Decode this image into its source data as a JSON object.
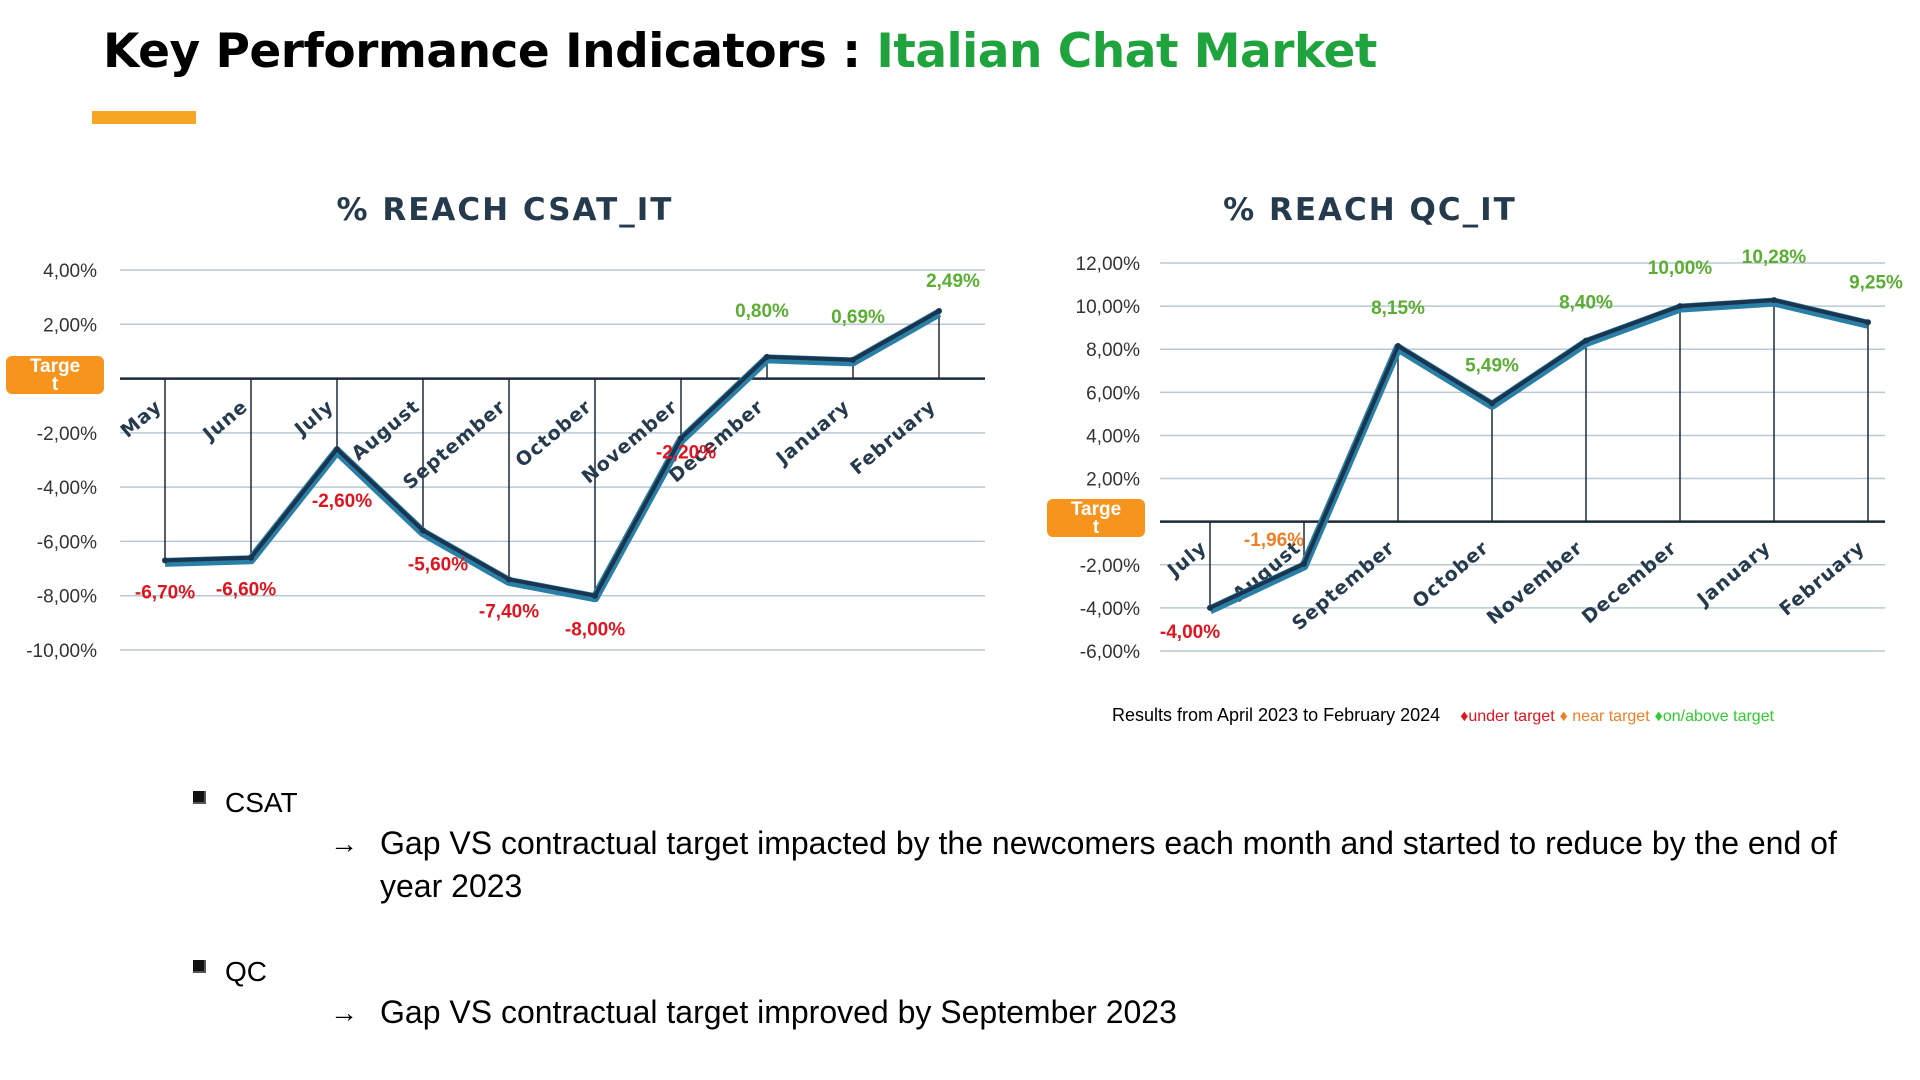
{
  "title": {
    "main": "Key Performance Indicators : ",
    "accent": "Italian Chat Market"
  },
  "colors": {
    "accent_green": "#1fa33c",
    "underline_orange": "#f5a623",
    "line_dark": "#1a3550",
    "line_light": "#2a7fa6",
    "under_target": "#e0141e",
    "near_target": "#ef7f22",
    "above_target": "#5aae32",
    "target_badge": "#f7941d"
  },
  "chart_data": [
    {
      "type": "line",
      "title": "% REACH CSAT_IT",
      "categories": [
        "May",
        "June",
        "July",
        "August",
        "September",
        "October",
        "November",
        "December",
        "January",
        "February"
      ],
      "series": [
        {
          "values": [
            -6.7,
            -6.6,
            -2.6,
            -5.6,
            -7.4,
            -8.0,
            -2.2,
            0.8,
            0.69,
            2.49
          ]
        }
      ],
      "data_labels": [
        "-6,70%",
        "-6,60%",
        "-2,60%",
        "-5,60%",
        "-7,40%",
        "-8,00%",
        "-2,20%",
        "0,80%",
        "0,69%",
        "2,49%"
      ],
      "yticks": [
        "4,00%",
        "2,00%",
        "",
        "-2,00%",
        "-4,00%",
        "-6,00%",
        "-8,00%",
        "-10,00%"
      ],
      "ylim": [
        -10,
        4
      ],
      "target_label": "Targe\nt",
      "grid": true
    },
    {
      "type": "line",
      "title": "% REACH QC_IT",
      "categories": [
        "July",
        "August",
        "September",
        "October",
        "November",
        "December",
        "January",
        "February"
      ],
      "series": [
        {
          "values": [
            -4.0,
            -1.96,
            8.15,
            5.49,
            8.4,
            10.0,
            10.28,
            9.25
          ]
        }
      ],
      "data_labels": [
        "-4,00%",
        "-1,96%",
        "8,15%",
        "5,49%",
        "8,40%",
        "10,00%",
        "10,28%",
        "9,25%"
      ],
      "yticks": [
        "12,00%",
        "10,00%",
        "8,00%",
        "6,00%",
        "4,00%",
        "2,00%",
        "",
        "-2,00%",
        "-4,00%",
        "-6,00%"
      ],
      "ylim": [
        -6,
        12
      ],
      "target_label": "Targe\nt",
      "grid": true
    }
  ],
  "footnote": {
    "text": "Results from April 2023 to February 2024",
    "under": "♦under target",
    "near": "♦ near target",
    "above": "♦on/above target"
  },
  "bullets": [
    {
      "label": "CSAT",
      "detail": "Gap VS contractual target impacted by the newcomers each month and started to reduce by the end of year 2023"
    },
    {
      "label": "QC",
      "detail": "Gap VS contractual target improved by September 2023"
    }
  ],
  "arrow_glyph": "→"
}
